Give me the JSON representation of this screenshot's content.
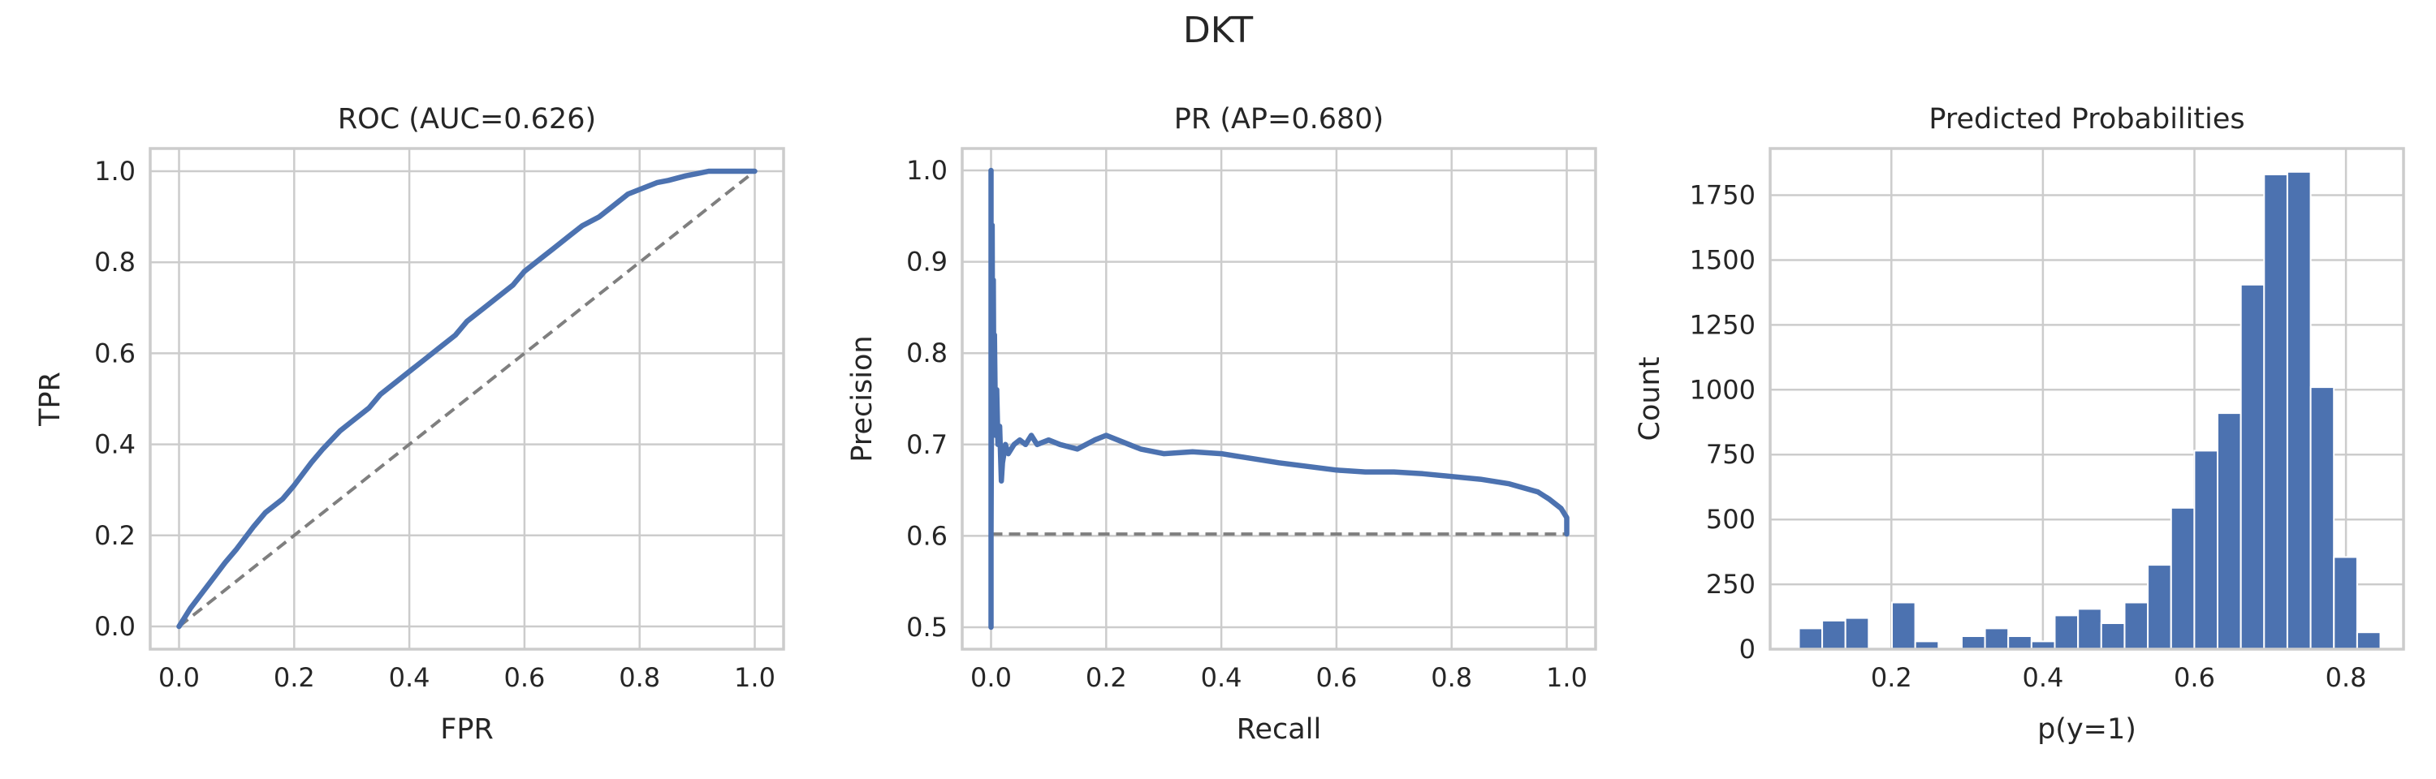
{
  "figure": {
    "title": "DKT"
  },
  "chart_data": [
    {
      "type": "line",
      "title": "ROC (AUC=0.626)",
      "xlabel": "FPR",
      "ylabel": "TPR",
      "xlim": [
        -0.05,
        1.05
      ],
      "ylim": [
        -0.05,
        1.05
      ],
      "xticks": [
        0.0,
        0.2,
        0.4,
        0.6,
        0.8,
        1.0
      ],
      "yticks": [
        0.0,
        0.2,
        0.4,
        0.6,
        0.8,
        1.0
      ],
      "xtick_labels": [
        "0.0",
        "0.2",
        "0.4",
        "0.6",
        "0.8",
        "1.0"
      ],
      "ytick_labels": [
        "0.0",
        "0.2",
        "0.4",
        "0.6",
        "0.8",
        "1.0"
      ],
      "grid": true,
      "series": [
        {
          "style": "solid",
          "color": "#4c72b0",
          "x": [
            0.0,
            0.02,
            0.05,
            0.08,
            0.1,
            0.13,
            0.15,
            0.18,
            0.2,
            0.23,
            0.25,
            0.28,
            0.3,
            0.33,
            0.35,
            0.38,
            0.4,
            0.43,
            0.45,
            0.48,
            0.5,
            0.53,
            0.55,
            0.58,
            0.6,
            0.63,
            0.65,
            0.68,
            0.7,
            0.73,
            0.75,
            0.78,
            0.8,
            0.83,
            0.85,
            0.88,
            0.9,
            0.92,
            0.95,
            0.97,
            1.0
          ],
          "y": [
            0.0,
            0.04,
            0.09,
            0.14,
            0.17,
            0.22,
            0.25,
            0.28,
            0.31,
            0.36,
            0.39,
            0.43,
            0.45,
            0.48,
            0.51,
            0.54,
            0.56,
            0.59,
            0.61,
            0.64,
            0.67,
            0.7,
            0.72,
            0.75,
            0.78,
            0.81,
            0.83,
            0.86,
            0.88,
            0.9,
            0.92,
            0.95,
            0.96,
            0.975,
            0.98,
            0.99,
            0.995,
            1.0,
            1.0,
            1.0,
            1.0
          ]
        },
        {
          "style": "dashed",
          "color": "#7f7f7f",
          "x": [
            0.0,
            1.0
          ],
          "y": [
            0.0,
            1.0
          ]
        }
      ]
    },
    {
      "type": "line",
      "title": "PR (AP=0.680)",
      "xlabel": "Recall",
      "ylabel": "Precision",
      "xlim": [
        -0.05,
        1.05
      ],
      "ylim": [
        0.476,
        1.024
      ],
      "xticks": [
        0.0,
        0.2,
        0.4,
        0.6,
        0.8,
        1.0
      ],
      "yticks": [
        0.5,
        0.6,
        0.7,
        0.8,
        0.9,
        1.0
      ],
      "xtick_labels": [
        "0.0",
        "0.2",
        "0.4",
        "0.6",
        "0.8",
        "1.0"
      ],
      "ytick_labels": [
        "0.5",
        "0.6",
        "0.7",
        "0.8",
        "0.9",
        "1.0"
      ],
      "grid": true,
      "series": [
        {
          "style": "solid",
          "color": "#4c72b0",
          "x": [
            0.0,
            0.0,
            0.0,
            0.002,
            0.003,
            0.004,
            0.005,
            0.006,
            0.008,
            0.01,
            0.012,
            0.015,
            0.018,
            0.02,
            0.025,
            0.03,
            0.04,
            0.05,
            0.06,
            0.07,
            0.08,
            0.1,
            0.12,
            0.15,
            0.18,
            0.2,
            0.22,
            0.24,
            0.26,
            0.3,
            0.35,
            0.4,
            0.45,
            0.5,
            0.55,
            0.6,
            0.65,
            0.7,
            0.75,
            0.8,
            0.85,
            0.9,
            0.95,
            0.97,
            0.99,
            1.0,
            1.0
          ],
          "y": [
            0.5,
            1.0,
            0.6,
            0.94,
            0.72,
            0.88,
            0.74,
            0.82,
            0.71,
            0.76,
            0.7,
            0.72,
            0.66,
            0.68,
            0.7,
            0.69,
            0.7,
            0.705,
            0.7,
            0.71,
            0.7,
            0.705,
            0.7,
            0.695,
            0.705,
            0.71,
            0.705,
            0.7,
            0.695,
            0.69,
            0.692,
            0.69,
            0.685,
            0.68,
            0.676,
            0.672,
            0.67,
            0.67,
            0.668,
            0.665,
            0.662,
            0.657,
            0.648,
            0.64,
            0.63,
            0.62,
            0.602
          ]
        },
        {
          "style": "dashed",
          "color": "#7f7f7f",
          "x": [
            0.0,
            1.0
          ],
          "y": [
            0.602,
            0.602
          ]
        }
      ]
    },
    {
      "type": "bar",
      "title": "Predicted Probabilities",
      "xlabel": "p(y=1)",
      "ylabel": "Count",
      "xlim": [
        0.04,
        0.876
      ],
      "ylim": [
        0,
        1930
      ],
      "xticks": [
        0.2,
        0.4,
        0.6,
        0.8
      ],
      "yticks": [
        0,
        250,
        500,
        750,
        1000,
        1250,
        1500,
        1750
      ],
      "xtick_labels": [
        "0.2",
        "0.4",
        "0.6",
        "0.8"
      ],
      "ytick_labels": [
        "0",
        "250",
        "500",
        "750",
        "1000",
        "1250",
        "1500",
        "1750"
      ],
      "grid": true,
      "color": "#4c72b0",
      "bin_start": 0.078,
      "bin_width": 0.0307,
      "values": [
        80,
        110,
        120,
        0,
        180,
        30,
        0,
        50,
        80,
        50,
        30,
        130,
        155,
        100,
        180,
        325,
        545,
        765,
        910,
        1405,
        1830,
        1840,
        1010,
        355,
        65
      ]
    }
  ]
}
